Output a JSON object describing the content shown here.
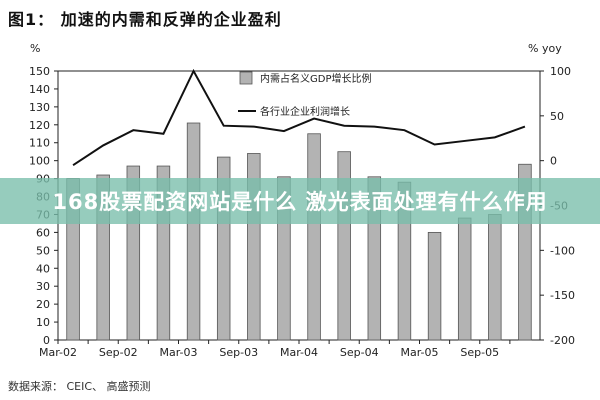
{
  "figure": {
    "title": "图1： 加速的内需和反弹的企业盈利",
    "source": "数据来源： CEIC、 高盛预测"
  },
  "banner": {
    "text": "168股票配资网站是什么 激光表面处理有什么作用"
  },
  "chart_data": {
    "type": "bar",
    "categories": [
      "Mar-02",
      "Jun-02",
      "Sep-02",
      "Dec-02",
      "Mar-03",
      "Jun-03",
      "Sep-03",
      "Dec-03",
      "Mar-04",
      "Jun-04",
      "Sep-04",
      "Dec-04",
      "Mar-05",
      "Jun-05",
      "Sep-05",
      "Dec-05"
    ],
    "xtick_labels": [
      "Mar-02",
      "Sep-02",
      "Mar-03",
      "Sep-03",
      "Mar-04",
      "Sep-04",
      "Mar-05",
      "Sep-05"
    ],
    "left_axis": {
      "unit": "%",
      "ylim": [
        0,
        150
      ],
      "ticks": [
        0,
        10,
        20,
        30,
        40,
        50,
        60,
        70,
        80,
        90,
        100,
        110,
        120,
        130,
        140,
        150
      ]
    },
    "right_axis": {
      "unit": "% yoy",
      "ylim": [
        -200,
        100
      ],
      "ticks": [
        100,
        50,
        0,
        -50,
        -100,
        -150,
        -200
      ]
    },
    "series": [
      {
        "name": "内需占名义GDP增长比例",
        "type": "bar",
        "axis": "left",
        "color": "#b3b3b3",
        "values": [
          90,
          92,
          97,
          97,
          121,
          102,
          104,
          91,
          115,
          105,
          91,
          88,
          60,
          68,
          70,
          98
        ]
      },
      {
        "name": "各行业企业利润增长",
        "type": "line",
        "axis": "right",
        "color": "#111111",
        "values": [
          -5,
          17,
          34,
          30,
          100,
          39,
          38,
          33,
          47,
          39,
          38,
          34,
          18,
          22,
          26,
          38
        ]
      }
    ],
    "grid": false,
    "legend_position": "top-center"
  }
}
